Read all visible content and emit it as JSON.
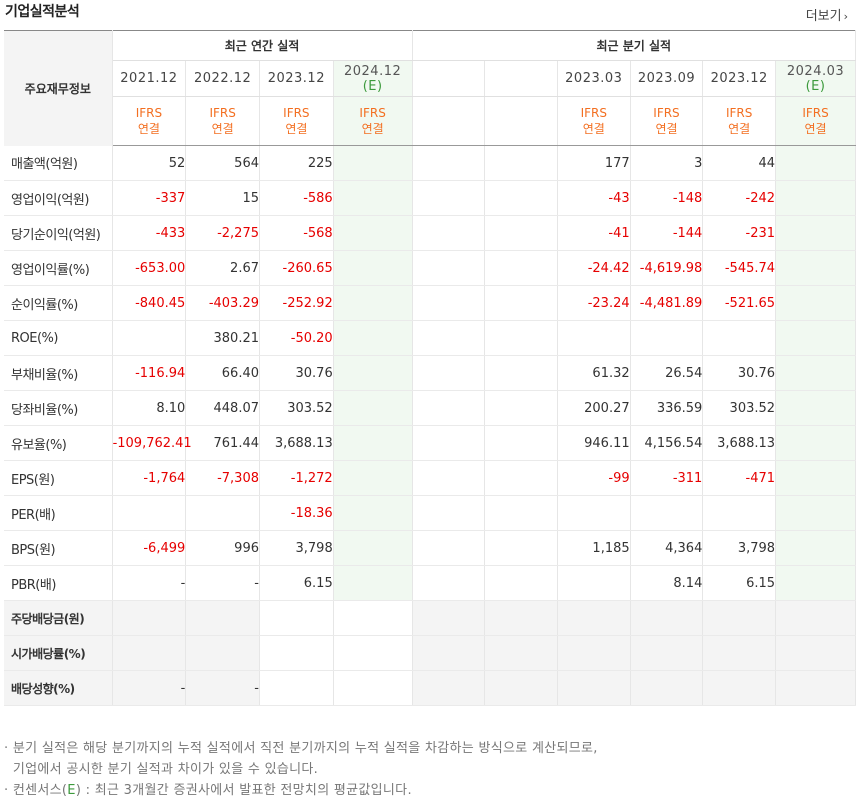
{
  "title": "기업실적분석",
  "more_label": "더보기",
  "header": {
    "row_label": "주요재무정보",
    "annual_group": "최근 연간 실적",
    "quarter_group": "최근 분기 실적",
    "annual_periods": [
      "2021.12",
      "2022.12",
      "2023.12",
      "2024.12"
    ],
    "annual_est_mark": "(E)",
    "quarter_periods": [
      "",
      "",
      "2023.03",
      "2023.09",
      "2023.12",
      "2024.03"
    ],
    "quarter_est_mark": "(E)",
    "ifrs_top": "IFRS",
    "ifrs_bottom": "연결"
  },
  "rows": [
    {
      "label": "매출액(억원)",
      "annual": [
        "52",
        "564",
        "225",
        ""
      ],
      "quarter": [
        "",
        "",
        "177",
        "3",
        "44",
        ""
      ]
    },
    {
      "label": "영업이익(억원)",
      "annual": [
        "-337",
        "15",
        "-586",
        ""
      ],
      "quarter": [
        "",
        "",
        "-43",
        "-148",
        "-242",
        ""
      ]
    },
    {
      "label": "당기순이익(억원)",
      "annual": [
        "-433",
        "-2,275",
        "-568",
        ""
      ],
      "quarter": [
        "",
        "",
        "-41",
        "-144",
        "-231",
        ""
      ]
    },
    {
      "label": "영업이익률(%)",
      "annual": [
        "-653.00",
        "2.67",
        "-260.65",
        ""
      ],
      "quarter": [
        "",
        "",
        "-24.42",
        "-4,619.98",
        "-545.74",
        ""
      ]
    },
    {
      "label": "순이익률(%)",
      "annual": [
        "-840.45",
        "-403.29",
        "-252.92",
        ""
      ],
      "quarter": [
        "",
        "",
        "-23.24",
        "-4,481.89",
        "-521.65",
        ""
      ]
    },
    {
      "label": "ROE(%)",
      "annual": [
        "",
        "380.21",
        "-50.20",
        ""
      ],
      "quarter": [
        "",
        "",
        "",
        "",
        "",
        ""
      ]
    },
    {
      "label": "부채비율(%)",
      "annual": [
        "-116.94",
        "66.40",
        "30.76",
        ""
      ],
      "quarter": [
        "",
        "",
        "61.32",
        "26.54",
        "30.76",
        ""
      ]
    },
    {
      "label": "당좌비율(%)",
      "annual": [
        "8.10",
        "448.07",
        "303.52",
        ""
      ],
      "quarter": [
        "",
        "",
        "200.27",
        "336.59",
        "303.52",
        ""
      ]
    },
    {
      "label": "유보율(%)",
      "annual": [
        "-109,762.41",
        "761.44",
        "3,688.13",
        ""
      ],
      "quarter": [
        "",
        "",
        "946.11",
        "4,156.54",
        "3,688.13",
        ""
      ]
    },
    {
      "label": "EPS(원)",
      "annual": [
        "-1,764",
        "-7,308",
        "-1,272",
        ""
      ],
      "quarter": [
        "",
        "",
        "-99",
        "-311",
        "-471",
        ""
      ]
    },
    {
      "label": "PER(배)",
      "annual": [
        "",
        "",
        "-18.36",
        ""
      ],
      "quarter": [
        "",
        "",
        "",
        "",
        "",
        ""
      ]
    },
    {
      "label": "BPS(원)",
      "annual": [
        "-6,499",
        "996",
        "3,798",
        ""
      ],
      "quarter": [
        "",
        "",
        "1,185",
        "4,364",
        "3,798",
        ""
      ]
    },
    {
      "label": "PBR(배)",
      "annual": [
        "-",
        "-",
        "6.15",
        ""
      ],
      "quarter": [
        "",
        "",
        "",
        "8.14",
        "6.15",
        ""
      ]
    },
    {
      "label": "주당배당금(원)",
      "annual": [
        "",
        "",
        "",
        ""
      ],
      "quarter": [
        "",
        "",
        "",
        "",
        "",
        ""
      ]
    },
    {
      "label": "시가배당률(%)",
      "annual": [
        "",
        "",
        "",
        ""
      ],
      "quarter": [
        "",
        "",
        "",
        "",
        "",
        ""
      ]
    },
    {
      "label": "배당성향(%)",
      "annual": [
        "-",
        "-",
        "",
        ""
      ],
      "quarter": [
        "",
        "",
        "",
        "",
        "",
        ""
      ]
    }
  ],
  "notes": {
    "line1": "분기 실적은 해당 분기까지의 누적 실적에서 직전 분기까지의 누적 실적을 차감하는 방식으로 계산되므로,",
    "line2": "기업에서 공시한 분기 실적과 차이가 있을 수 있습니다.",
    "line3_pre": "컨센서스(",
    "line3_e": "E",
    "line3_post": ") : 최근 3개월간 증권사에서 발표한 전망치의 평균값입니다."
  },
  "colors": {
    "negative": "#e60000",
    "ifrs": "#f36f21",
    "estimate_bg": "#f1f9f1",
    "estimate_mark": "#3c9a3c"
  }
}
